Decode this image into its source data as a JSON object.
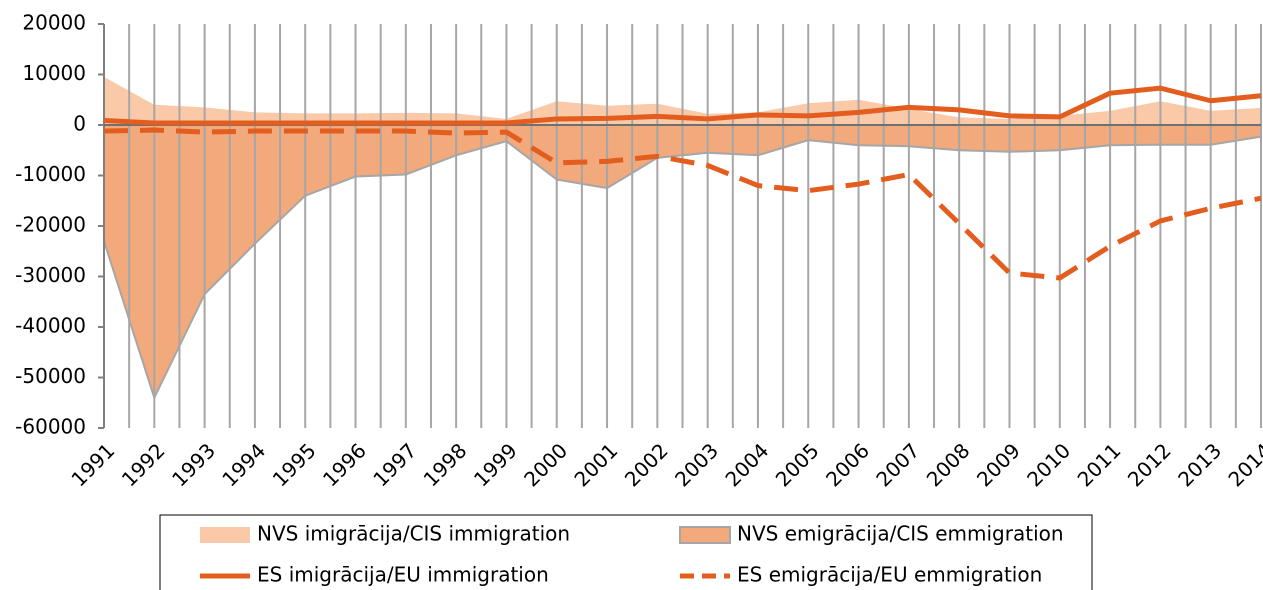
{
  "chart_data": {
    "type": "line",
    "categories": [
      "1991",
      "1992",
      "1993",
      "1994",
      "1995",
      "1996",
      "1997",
      "1998",
      "1999",
      "2000",
      "2001",
      "2002",
      "2003",
      "2004",
      "2005",
      "2006",
      "2007",
      "2008",
      "2009",
      "2010",
      "2011",
      "2012",
      "2013",
      "2014"
    ],
    "ylim": [
      -60000,
      20000
    ],
    "yticks": [
      -60000,
      -50000,
      -40000,
      -30000,
      -20000,
      -10000,
      0,
      10000,
      20000
    ],
    "grid": true,
    "legend": "bottom",
    "series": [
      {
        "name": "NVS imigrācija/CIS immigration",
        "style": "area",
        "color": "#f9c9a8",
        "values": [
          9500,
          4000,
          3500,
          2500,
          2300,
          2300,
          2400,
          2300,
          1200,
          4700,
          3800,
          4200,
          2200,
          2500,
          4300,
          5000,
          3200,
          1500,
          1200,
          1800,
          2800,
          4700,
          2800,
          3400
        ]
      },
      {
        "name": "NVS emigrācija/CIS emmigration",
        "style": "area",
        "color": "#f2a97c",
        "values": [
          -23000,
          -54000,
          -33500,
          -23500,
          -14000,
          -10200,
          -9800,
          -6000,
          -3200,
          -10800,
          -12500,
          -6500,
          -5500,
          -6000,
          -3000,
          -4000,
          -4200,
          -5000,
          -5300,
          -5000,
          -4000,
          -3900,
          -3900,
          -2300
        ]
      },
      {
        "name": "ES imigrācija/EU immigration",
        "style": "line",
        "dashed": false,
        "color": "#e35d1f",
        "values": [
          900,
          400,
          400,
          400,
          400,
          400,
          400,
          400,
          400,
          1200,
          1300,
          1700,
          1200,
          2000,
          1800,
          2500,
          3500,
          3000,
          1800,
          1600,
          6300,
          7300,
          4800,
          5800
        ]
      },
      {
        "name": "ES emigrācija/EU emmigration",
        "style": "line",
        "dashed": true,
        "color": "#e35d1f",
        "values": [
          -1200,
          -1000,
          -1400,
          -1200,
          -1200,
          -1200,
          -1200,
          -1600,
          -1400,
          -7500,
          -7200,
          -6200,
          -8000,
          -12000,
          -13000,
          -11700,
          -9800,
          -19500,
          -29300,
          -30300,
          -24000,
          -19000,
          -16500,
          -14500
        ]
      }
    ]
  }
}
